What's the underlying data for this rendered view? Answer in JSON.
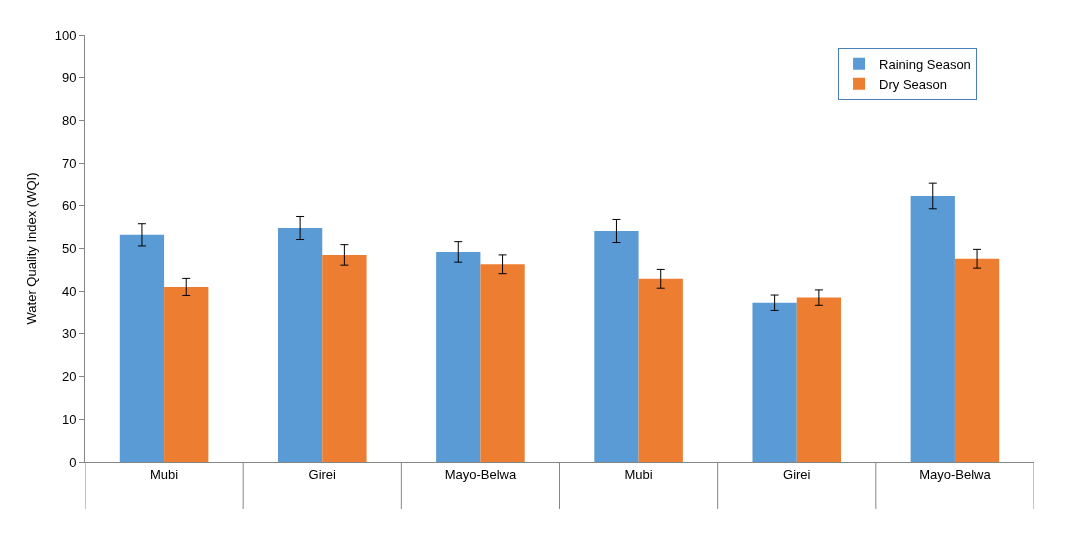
{
  "chart_data": {
    "type": "bar",
    "ylabel": "Water Quality Index (WQI)",
    "categories": [
      "Mubi",
      "Girei",
      "Mayo-Belwa",
      "Mubi",
      "Girei",
      "Mayo-Belwa"
    ],
    "series": [
      {
        "name": "Raining Season",
        "color": "#5b9bd5",
        "values": [
          53.2,
          54.8,
          49.2,
          54.1,
          37.3,
          62.3
        ],
        "errors": [
          2.6,
          2.7,
          2.4,
          2.7,
          1.8,
          3
        ]
      },
      {
        "name": "Dry Season",
        "color": "#ed7d31",
        "values": [
          41,
          48.5,
          46.3,
          42.9,
          38.5,
          47.6
        ],
        "errors": [
          2,
          2.4,
          2.2,
          2.2,
          1.8,
          2.2
        ]
      }
    ],
    "ylim": [
      0,
      100
    ],
    "yticks": [
      0,
      10,
      20,
      30,
      40,
      50,
      60,
      70,
      80,
      90,
      100
    ],
    "legend": "top right"
  }
}
